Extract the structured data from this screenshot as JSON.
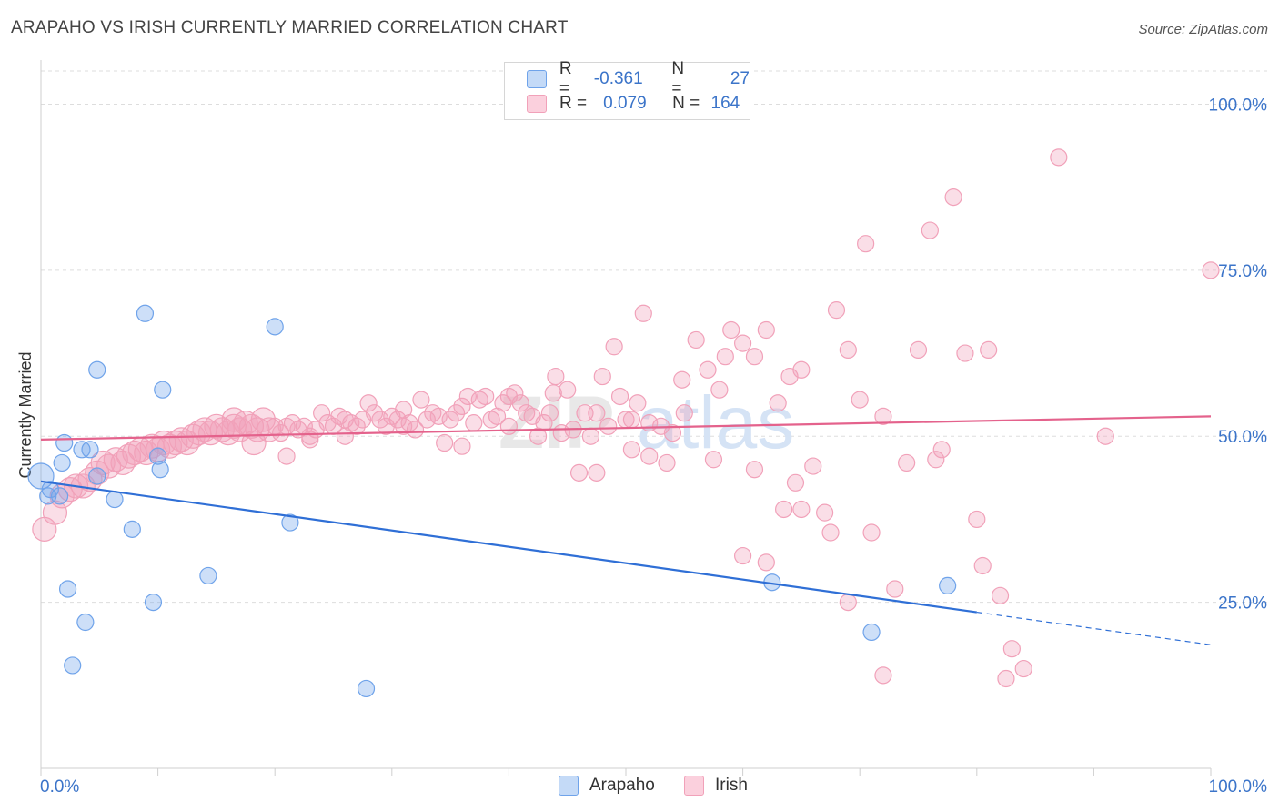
{
  "header": {
    "title": "ARAPAHO VS IRISH CURRENTLY MARRIED CORRELATION CHART",
    "source": "Source: ZipAtlas.com"
  },
  "legend": {
    "arapaho": {
      "r_label": "R =",
      "r_value": "-0.361",
      "n_label": "N =",
      "n_value": "27"
    },
    "irish": {
      "r_label": "R =",
      "r_value": "0.079",
      "n_label": "N =",
      "n_value": "164"
    }
  },
  "watermark": {
    "zip": "ZIP",
    "atlas": "atlas"
  },
  "chart_data": {
    "type": "scatter",
    "title": "ARAPAHO VS IRISH CURRENTLY MARRIED CORRELATION CHART",
    "xlabel": "",
    "ylabel": "Currently Married",
    "xlim": [
      0,
      100
    ],
    "ylim": [
      0,
      105
    ],
    "x_tick_labels": [
      "0.0%",
      "100.0%"
    ],
    "y_ticks": [
      25,
      50,
      75,
      100
    ],
    "y_tick_labels": [
      "25.0%",
      "50.0%",
      "75.0%",
      "100.0%"
    ],
    "grid": true,
    "legend_position": "bottom-center",
    "colors": {
      "arapaho": "#6fa3ea",
      "arapaho_line": "#2f6fd6",
      "irish": "#f1a1b9",
      "irish_line": "#e4628c"
    },
    "series": [
      {
        "name": "Arapaho",
        "R": -0.361,
        "N": 27,
        "trend": {
          "x": [
            0,
            80
          ],
          "y": [
            43.2,
            23.5
          ],
          "dashed_to": [
            100,
            18.6
          ]
        },
        "points": [
          [
            0.0,
            44.0
          ],
          [
            0.6,
            41.0
          ],
          [
            0.8,
            42.0
          ],
          [
            1.6,
            41.0
          ],
          [
            1.8,
            46.0
          ],
          [
            2.0,
            49.0
          ],
          [
            2.3,
            27.0
          ],
          [
            3.5,
            48.0
          ],
          [
            3.8,
            22.0
          ],
          [
            4.2,
            48.0
          ],
          [
            2.7,
            15.5
          ],
          [
            4.8,
            60.0
          ],
          [
            4.8,
            44.0
          ],
          [
            6.3,
            40.5
          ],
          [
            7.8,
            36.0
          ],
          [
            8.9,
            68.5
          ],
          [
            9.6,
            25.0
          ],
          [
            10.2,
            45.0
          ],
          [
            10.4,
            57.0
          ],
          [
            14.3,
            29.0
          ],
          [
            20.0,
            66.5
          ],
          [
            21.3,
            37.0
          ],
          [
            27.8,
            12.0
          ],
          [
            62.5,
            28.0
          ],
          [
            71.0,
            20.5
          ],
          [
            77.5,
            27.5
          ],
          [
            10.0,
            47.0
          ]
        ]
      },
      {
        "name": "Irish",
        "R": 0.079,
        "N": 164,
        "trend": {
          "x": [
            0,
            100
          ],
          "y": [
            49.5,
            53.0
          ]
        },
        "points": [
          [
            0.3,
            36.0
          ],
          [
            1.2,
            38.5
          ],
          [
            1.8,
            41.0
          ],
          [
            2.5,
            42.0
          ],
          [
            3.0,
            42.5
          ],
          [
            3.6,
            42.5
          ],
          [
            4.2,
            43.5
          ],
          [
            4.8,
            44.5
          ],
          [
            5.3,
            46.0
          ],
          [
            5.8,
            45.5
          ],
          [
            6.4,
            46.5
          ],
          [
            7.0,
            46.0
          ],
          [
            7.5,
            47.0
          ],
          [
            8.0,
            47.5
          ],
          [
            8.5,
            48.0
          ],
          [
            9.0,
            47.5
          ],
          [
            9.5,
            48.5
          ],
          [
            10.0,
            48.0
          ],
          [
            10.5,
            49.0
          ],
          [
            11.0,
            48.5
          ],
          [
            11.5,
            49.0
          ],
          [
            12.0,
            49.5
          ],
          [
            12.5,
            49.0
          ],
          [
            13.0,
            50.0
          ],
          [
            13.5,
            50.5
          ],
          [
            14.0,
            51.0
          ],
          [
            14.5,
            50.5
          ],
          [
            15.0,
            51.5
          ],
          [
            15.5,
            51.0
          ],
          [
            16.0,
            50.5
          ],
          [
            16.5,
            51.5
          ],
          [
            17.0,
            51.0
          ],
          [
            17.5,
            52.0
          ],
          [
            18.0,
            51.5
          ],
          [
            18.5,
            51.0
          ],
          [
            19.0,
            52.5
          ],
          [
            19.5,
            51.0
          ],
          [
            20.0,
            51.5
          ],
          [
            20.5,
            50.5
          ],
          [
            21.0,
            51.5
          ],
          [
            21.5,
            52.0
          ],
          [
            22.0,
            51.0
          ],
          [
            22.5,
            51.5
          ],
          [
            23.0,
            50.0
          ],
          [
            23.5,
            51.0
          ],
          [
            24.0,
            53.5
          ],
          [
            24.5,
            52.0
          ],
          [
            25.0,
            51.5
          ],
          [
            25.5,
            53.0
          ],
          [
            26.0,
            52.5
          ],
          [
            26.5,
            52.0
          ],
          [
            27.0,
            51.5
          ],
          [
            27.5,
            52.5
          ],
          [
            28.0,
            55.0
          ],
          [
            28.5,
            53.5
          ],
          [
            29.0,
            52.5
          ],
          [
            29.5,
            51.5
          ],
          [
            30.0,
            53.0
          ],
          [
            30.5,
            52.5
          ],
          [
            31.0,
            54.0
          ],
          [
            31.5,
            52.0
          ],
          [
            32.0,
            51.0
          ],
          [
            32.5,
            55.5
          ],
          [
            33.0,
            52.5
          ],
          [
            33.5,
            53.5
          ],
          [
            34.0,
            53.0
          ],
          [
            34.5,
            49.0
          ],
          [
            35.0,
            52.5
          ],
          [
            35.5,
            53.5
          ],
          [
            36.0,
            54.5
          ],
          [
            36.5,
            56.0
          ],
          [
            37.0,
            52.0
          ],
          [
            37.5,
            55.5
          ],
          [
            38.0,
            56.0
          ],
          [
            38.5,
            52.5
          ],
          [
            39.0,
            53.0
          ],
          [
            39.5,
            55.0
          ],
          [
            40.0,
            51.5
          ],
          [
            40.5,
            56.5
          ],
          [
            41.0,
            55.0
          ],
          [
            41.5,
            53.5
          ],
          [
            42.0,
            53.0
          ],
          [
            42.5,
            50.0
          ],
          [
            43.0,
            52.0
          ],
          [
            43.5,
            53.5
          ],
          [
            44.0,
            59.0
          ],
          [
            44.5,
            50.5
          ],
          [
            45.0,
            57.0
          ],
          [
            45.5,
            51.0
          ],
          [
            46.0,
            44.5
          ],
          [
            46.5,
            53.5
          ],
          [
            47.0,
            50.0
          ],
          [
            47.5,
            53.5
          ],
          [
            48.0,
            59.0
          ],
          [
            48.5,
            51.5
          ],
          [
            49.0,
            63.5
          ],
          [
            49.5,
            56.0
          ],
          [
            50.0,
            52.5
          ],
          [
            50.5,
            48.0
          ],
          [
            51.0,
            55.0
          ],
          [
            51.5,
            68.5
          ],
          [
            52.0,
            52.0
          ],
          [
            53.0,
            51.5
          ],
          [
            54.0,
            50.5
          ],
          [
            55.0,
            53.5
          ],
          [
            56.0,
            64.5
          ],
          [
            57.0,
            60.0
          ],
          [
            58.0,
            57.0
          ],
          [
            59.0,
            66.0
          ],
          [
            60.0,
            64.0
          ],
          [
            61.0,
            62.0
          ],
          [
            62.0,
            66.0
          ],
          [
            63.0,
            55.0
          ],
          [
            64.0,
            59.0
          ],
          [
            65.0,
            60.0
          ],
          [
            66.0,
            45.5
          ],
          [
            67.0,
            38.5
          ],
          [
            68.0,
            69.0
          ],
          [
            69.0,
            63.0
          ],
          [
            70.0,
            55.5
          ],
          [
            70.5,
            79.0
          ],
          [
            71.0,
            35.5
          ],
          [
            72.0,
            53.0
          ],
          [
            73.0,
            27.0
          ],
          [
            74.0,
            46.0
          ],
          [
            75.0,
            63.0
          ],
          [
            76.0,
            81.0
          ],
          [
            77.0,
            48.0
          ],
          [
            78.0,
            86.0
          ],
          [
            79.0,
            62.5
          ],
          [
            80.0,
            37.5
          ],
          [
            80.5,
            30.5
          ],
          [
            82.0,
            26.0
          ],
          [
            83.0,
            18.0
          ],
          [
            84.0,
            15.0
          ],
          [
            87.0,
            92.0
          ],
          [
            91.0,
            50.0
          ],
          [
            100.0,
            75.0
          ],
          [
            16.5,
            52.5
          ],
          [
            18.2,
            49.0
          ],
          [
            21.0,
            47.0
          ],
          [
            23.0,
            49.5
          ],
          [
            26.0,
            50.0
          ],
          [
            31.0,
            51.5
          ],
          [
            36.0,
            48.5
          ],
          [
            40.0,
            56.0
          ],
          [
            43.8,
            56.5
          ],
          [
            47.5,
            44.5
          ],
          [
            50.5,
            52.5
          ],
          [
            52.0,
            47.0
          ],
          [
            53.5,
            46.0
          ],
          [
            54.8,
            58.5
          ],
          [
            57.5,
            46.5
          ],
          [
            58.5,
            62.0
          ],
          [
            60.0,
            32.0
          ],
          [
            61.0,
            45.0
          ],
          [
            62.0,
            31.0
          ],
          [
            63.5,
            39.0
          ],
          [
            64.5,
            43.0
          ],
          [
            65.0,
            39.0
          ],
          [
            67.5,
            35.5
          ],
          [
            69.0,
            25.0
          ],
          [
            72.0,
            14.0
          ],
          [
            76.5,
            46.5
          ],
          [
            81.0,
            63.0
          ],
          [
            82.5,
            13.5
          ]
        ]
      }
    ]
  }
}
